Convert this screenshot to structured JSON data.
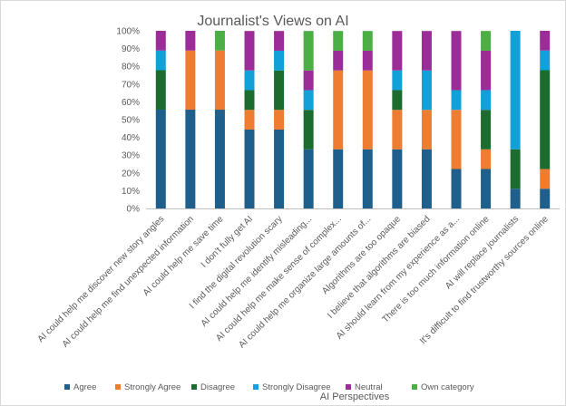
{
  "chart_data": {
    "type": "bar",
    "stacked": "percent",
    "title": "Journalist's Views on AI",
    "xlabel": "AI Perspectives",
    "ylabel": "",
    "ylim": [
      0,
      100
    ],
    "yticks": [
      "0%",
      "10%",
      "20%",
      "30%",
      "40%",
      "50%",
      "60%",
      "70%",
      "80%",
      "90%",
      "100%"
    ],
    "grid": false,
    "legend_position": "bottom",
    "categories": [
      "AI could help me discover new story angles",
      "AI could help me find unexpected information",
      "AI could help me save time",
      "I don't fully get AI",
      "I find the digital revolution scary",
      "AI could help me identify misleading...",
      "AI could help me make sense of complex...",
      "AI could help me organize large amounts of...",
      "Algorithms are too opaque",
      "I believe that algorithms are biased",
      "AI should learn from my experience as a...",
      "There is too much information online",
      "AI will replace journalists",
      "It's difficult to find trustworthy sources online"
    ],
    "series": [
      {
        "name": "Agree",
        "color": "#1f5f8b",
        "values": [
          55.6,
          55.6,
          55.6,
          44.4,
          44.4,
          33.3,
          33.3,
          33.3,
          33.3,
          33.3,
          22.2,
          22.2,
          11.1,
          11.1
        ]
      },
      {
        "name": "Strongly Agree",
        "color": "#ee7c31",
        "values": [
          0,
          33.3,
          33.3,
          11.1,
          11.1,
          0,
          44.4,
          44.4,
          22.2,
          22.2,
          33.3,
          11.1,
          0,
          11.1
        ]
      },
      {
        "name": "Disagree",
        "color": "#1c6b2f",
        "values": [
          22.2,
          0,
          0,
          11.1,
          22.2,
          22.2,
          0,
          0,
          11.1,
          0,
          0,
          22.2,
          22.2,
          55.6
        ]
      },
      {
        "name": "Strongly Disagree",
        "color": "#12a0d8",
        "values": [
          11.1,
          0,
          0,
          11.1,
          11.1,
          11.1,
          0,
          0,
          11.1,
          22.2,
          11.1,
          11.1,
          66.7,
          11.1
        ]
      },
      {
        "name": "Neutral",
        "color": "#9b2c98",
        "values": [
          11.1,
          11.1,
          0,
          22.2,
          11.1,
          11.1,
          11.1,
          11.1,
          22.2,
          22.2,
          33.3,
          22.2,
          0,
          11.1
        ]
      },
      {
        "name": "Own category",
        "color": "#4caf45",
        "values": [
          0,
          0,
          11.1,
          0,
          0,
          22.2,
          11.1,
          11.1,
          0,
          0,
          0,
          11.1,
          0,
          0
        ]
      }
    ]
  }
}
